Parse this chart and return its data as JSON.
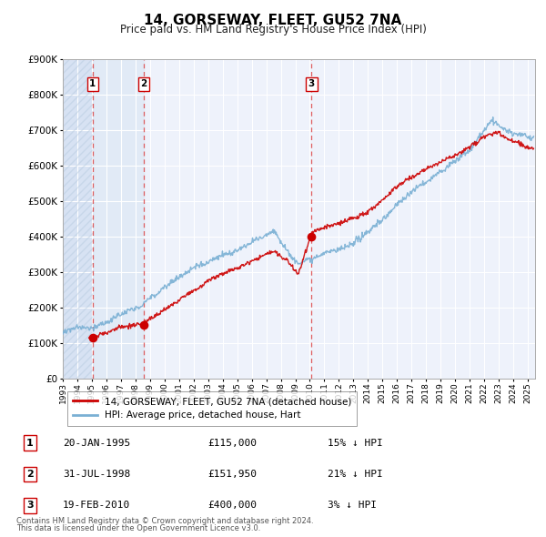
{
  "title": "14, GORSEWAY, FLEET, GU52 7NA",
  "subtitle": "Price paid vs. HM Land Registry's House Price Index (HPI)",
  "red_label": "14, GORSEWAY, FLEET, GU52 7NA (detached house)",
  "blue_label": "HPI: Average price, detached house, Hart",
  "footer_line1": "Contains HM Land Registry data © Crown copyright and database right 2024.",
  "footer_line2": "This data is licensed under the Open Government Licence v3.0.",
  "transactions": [
    {
      "num": 1,
      "date": "20-JAN-1995",
      "price": "£115,000",
      "pct": "15% ↓ HPI",
      "year": 1995.05,
      "value": 115000
    },
    {
      "num": 2,
      "date": "31-JUL-1998",
      "price": "£151,950",
      "pct": "21% ↓ HPI",
      "year": 1998.58,
      "value": 151950
    },
    {
      "num": 3,
      "date": "19-FEB-2010",
      "price": "£400,000",
      "pct": "3% ↓ HPI",
      "year": 2010.12,
      "value": 400000
    }
  ],
  "ylim": [
    0,
    900000
  ],
  "yticks": [
    0,
    100000,
    200000,
    300000,
    400000,
    500000,
    600000,
    700000,
    800000,
    900000
  ],
  "xlim_start": 1993.0,
  "xlim_end": 2025.5,
  "plot_bg": "#eef2fb",
  "fig_bg": "#ffffff",
  "red_color": "#cc0000",
  "blue_color": "#7ab0d4",
  "vline_color": "#dd4444",
  "grid_color": "#ffffff",
  "shade_color": "#dce8f5",
  "hatch_color": "#c8d8ee"
}
